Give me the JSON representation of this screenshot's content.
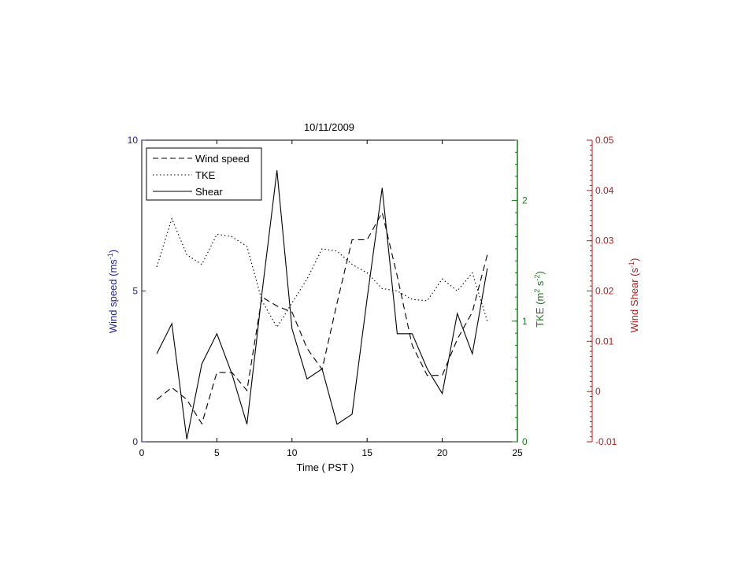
{
  "chart_data": {
    "type": "line",
    "title": "10/11/2009",
    "xlabel": "Time ( PST )",
    "xlim": [
      0,
      25
    ],
    "xticks": [
      0,
      5,
      10,
      15,
      20,
      25
    ],
    "axes": {
      "left": {
        "label_main": "Wind speed (ms",
        "label_sup": "-1",
        "label_end": ")",
        "ylim": [
          0,
          10
        ],
        "ticks": [
          0,
          5,
          10
        ],
        "color": "#1f1f8f"
      },
      "right1": {
        "label_main": "TKE (m",
        "label_sup1": "2",
        "label_mid": " s",
        "label_sup2": "-2",
        "label_end": ")",
        "ylim": [
          0,
          2.5
        ],
        "ticks": [
          0,
          1,
          2
        ],
        "color": "#1a7a1a"
      },
      "right2": {
        "label_main": "Wind Shear (s",
        "label_sup": "-1",
        "label_end": ")",
        "ylim": [
          -0.01,
          0.05
        ],
        "ticks": [
          -0.01,
          0,
          0.01,
          0.02,
          0.03,
          0.04,
          0.05
        ],
        "tick_labels": [
          "-0.01",
          "0",
          "0.01",
          "0.02",
          "0.03",
          "0.04",
          "0.05"
        ],
        "color": "#b01c1c"
      }
    },
    "x": [
      1,
      2,
      3,
      4,
      5,
      6,
      7,
      8,
      9,
      10,
      11,
      12,
      13,
      14,
      15,
      16,
      17,
      18,
      19,
      20,
      21,
      22,
      23
    ],
    "series": [
      {
        "name": "Wind speed",
        "axis": "left",
        "style": "dashed",
        "values": [
          1.4,
          1.8,
          1.4,
          0.6,
          2.3,
          2.3,
          1.7,
          4.8,
          4.5,
          4.3,
          3.1,
          2.4,
          4.6,
          6.7,
          6.7,
          7.6,
          5.5,
          3.2,
          2.2,
          2.2,
          3.4,
          4.3,
          6.2
        ]
      },
      {
        "name": "TKE",
        "axis": "right1",
        "style": "dotted",
        "values": [
          1.45,
          1.85,
          1.55,
          1.47,
          1.72,
          1.7,
          1.62,
          1.17,
          0.95,
          1.15,
          1.35,
          1.6,
          1.58,
          1.47,
          1.4,
          1.27,
          1.25,
          1.18,
          1.17,
          1.35,
          1.25,
          1.4,
          1.0
        ]
      },
      {
        "name": "Shear",
        "axis": "right2",
        "style": "solid",
        "values": [
          0.0075,
          0.0135,
          -0.0095,
          0.0055,
          0.0115,
          0.0035,
          -0.0065,
          0.0195,
          0.044,
          0.0125,
          0.0025,
          0.0045,
          -0.0065,
          -0.0045,
          0.0185,
          0.0405,
          0.0115,
          0.0115,
          0.0045,
          -0.0004,
          0.0155,
          0.0075,
          0.0245
        ]
      }
    ],
    "legend": {
      "placement": "top-left",
      "entries": [
        "Wind speed",
        "TKE",
        "Shear"
      ]
    }
  }
}
